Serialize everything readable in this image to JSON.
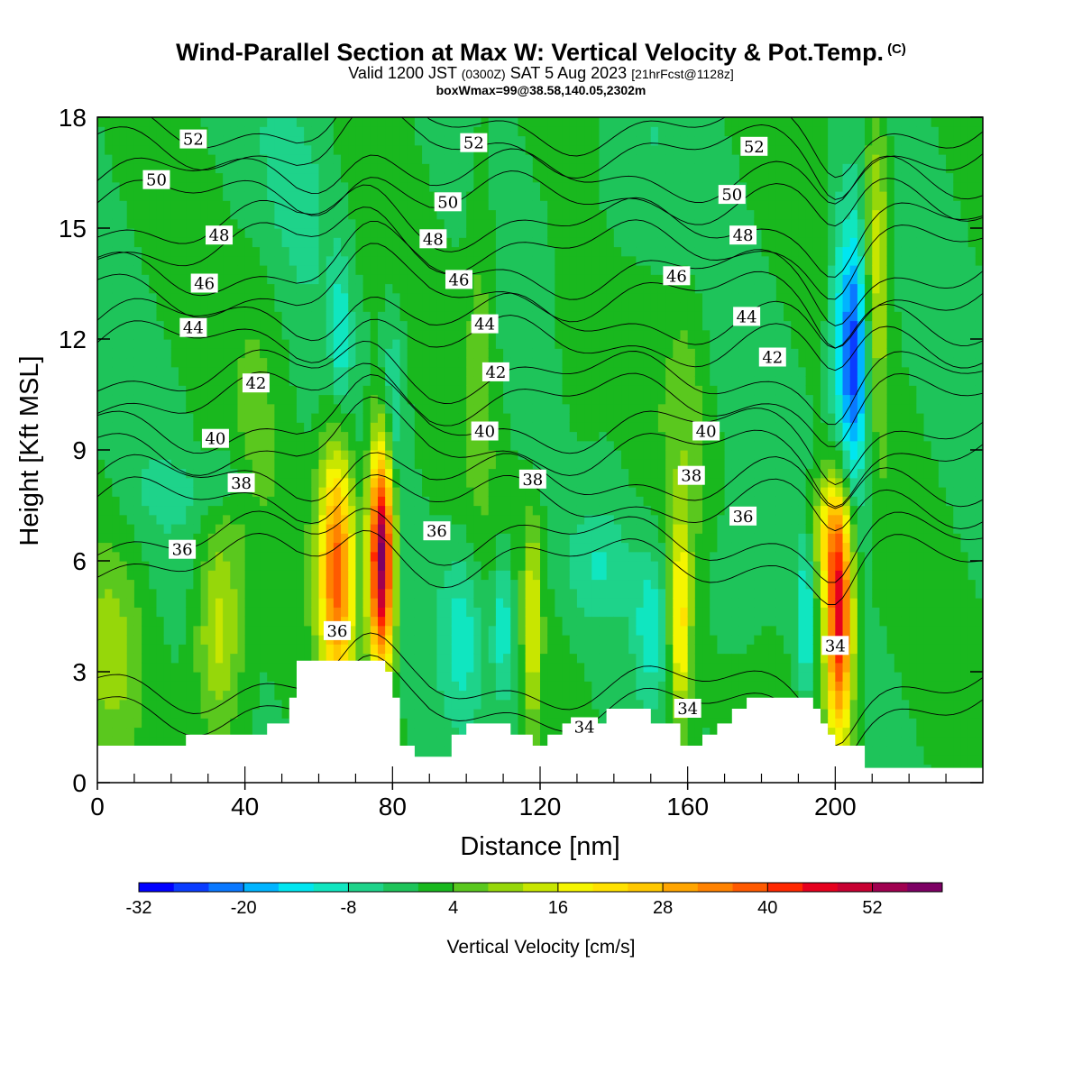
{
  "header": {
    "title": "Wind-Parallel Section at Max W: Vertical Velocity & Pot.Temp.",
    "copyright": "(C)",
    "valid_prefix": "Valid 1200 JST",
    "valid_utc": "(0300Z)",
    "valid_date": "SAT 5 Aug 2023",
    "forecast": "[21hrFcst@1128z]",
    "boxwmax": "boxWmax=99@38.58,140.05,2302m"
  },
  "chart_data": {
    "type": "heatmap",
    "title": "Wind-Parallel Section at Max W: Vertical Velocity & Pot.Temp.",
    "xlabel": "Distance [nm]",
    "ylabel": "Height [Kft MSL]",
    "xlim": [
      0,
      240
    ],
    "ylim": [
      0,
      18
    ],
    "x_ticks": [
      0,
      40,
      80,
      120,
      160,
      200
    ],
    "y_ticks": [
      0,
      3,
      6,
      9,
      12,
      15,
      18
    ],
    "colorbar": {
      "label": "Vertical Velocity [cm/s]",
      "tick_values": [
        -32,
        -20,
        -8,
        4,
        16,
        28,
        40,
        52
      ],
      "tick_labels": [
        "-32",
        "-20",
        "-8",
        "4",
        "16",
        "28",
        "40",
        "52"
      ],
      "min": -32,
      "max": 60,
      "step": 4,
      "colors": [
        "#0000ff",
        "#0a3cff",
        "#0a78ff",
        "#00b4ff",
        "#00e6f0",
        "#10e6c0",
        "#1ed38a",
        "#1ec45a",
        "#19b81e",
        "#5ac81e",
        "#96d70a",
        "#c8e600",
        "#f5f500",
        "#ffe100",
        "#ffc800",
        "#ffa500",
        "#ff8200",
        "#ff5a00",
        "#ff2800",
        "#e6001e",
        "#c80032",
        "#a00050",
        "#7d0064"
      ]
    },
    "series": [
      {
        "name": "Vertical Velocity",
        "units": "cm/s",
        "background": 0,
        "features": [
          {
            "x": 4,
            "z": 3.3,
            "sx": 6,
            "sz": 2.0,
            "w": 9
          },
          {
            "x": 33,
            "z": 4.2,
            "sx": 4.5,
            "sz": 2.0,
            "w": 15
          },
          {
            "x": 20,
            "z": 7.8,
            "sx": 7,
            "sz": 0.6,
            "w": -4
          },
          {
            "x": 34,
            "z": 8.3,
            "sx": 3,
            "sz": 0.6,
            "w": -6
          },
          {
            "x": 65,
            "z": 5.8,
            "sx": 3.4,
            "sz": 2.4,
            "w": 38
          },
          {
            "x": 77,
            "z": 6.2,
            "sx": 2.4,
            "sz": 2.2,
            "w": 60
          },
          {
            "x": 71,
            "z": 5.5,
            "sx": 1.2,
            "sz": 2.5,
            "w": -2
          },
          {
            "x": 66,
            "z": 12.0,
            "sx": 2.0,
            "sz": 1.6,
            "w": -10
          },
          {
            "x": 80,
            "z": 10.2,
            "sx": 2.5,
            "sz": 2.0,
            "w": -10
          },
          {
            "x": 99,
            "z": 4.0,
            "sx": 4.5,
            "sz": 1.8,
            "w": -10
          },
          {
            "x": 110,
            "z": 4.3,
            "sx": 2.0,
            "sz": 1.5,
            "w": -12
          },
          {
            "x": 118,
            "z": 4.3,
            "sx": 1.6,
            "sz": 2.0,
            "w": 16
          },
          {
            "x": 135,
            "z": 5.8,
            "sx": 6,
            "sz": 1.0,
            "w": -6
          },
          {
            "x": 150,
            "z": 4.2,
            "sx": 3,
            "sz": 1.5,
            "w": -10
          },
          {
            "x": 158,
            "z": 4.3,
            "sx": 2.0,
            "sz": 2.0,
            "w": 22
          },
          {
            "x": 172,
            "z": 5.5,
            "sx": 5,
            "sz": 1.3,
            "w": -6
          },
          {
            "x": 192,
            "z": 4.5,
            "sx": 1.1,
            "sz": 1.5,
            "w": -15
          },
          {
            "x": 201,
            "z": 4.4,
            "sx": 2.6,
            "sz": 2.3,
            "w": 48
          },
          {
            "x": 198,
            "z": 6.8,
            "sx": 3.5,
            "sz": 1.2,
            "w": 16
          },
          {
            "x": 205,
            "z": 11.5,
            "sx": 3.0,
            "sz": 2.6,
            "w": -30
          },
          {
            "x": 200,
            "z": 12.0,
            "sx": 2.0,
            "sz": 3.0,
            "w": -6
          },
          {
            "x": 211,
            "z": 14.5,
            "sx": 2.6,
            "sz": 3.0,
            "w": 16
          },
          {
            "x": 104,
            "z": 13.0,
            "sx": 3,
            "sz": 4,
            "w": 6
          },
          {
            "x": 130,
            "z": 12.0,
            "sx": 5,
            "sz": 3,
            "w": 4
          },
          {
            "x": 160,
            "z": 10.5,
            "sx": 4,
            "sz": 2.5,
            "w": 5
          },
          {
            "x": 45,
            "z": 12.0,
            "sx": 5,
            "sz": 3,
            "w": 3
          },
          {
            "x": 140,
            "z": 16.0,
            "sx": 10,
            "sz": 2,
            "w": -4
          },
          {
            "x": 55,
            "z": 16.5,
            "sx": 8,
            "sz": 2,
            "w": -4
          }
        ]
      },
      {
        "name": "Potential Temperature",
        "contour_values": [
          34,
          36,
          38,
          40,
          42,
          44,
          46,
          48,
          50,
          52
        ],
        "labels": [
          {
            "text": "52",
            "x": 26,
            "z": 17.4
          },
          {
            "text": "52",
            "x": 102,
            "z": 17.3
          },
          {
            "text": "52",
            "x": 178,
            "z": 17.2
          },
          {
            "text": "50",
            "x": 16,
            "z": 16.3
          },
          {
            "text": "50",
            "x": 95,
            "z": 15.7
          },
          {
            "text": "50",
            "x": 172,
            "z": 15.9
          },
          {
            "text": "48",
            "x": 33,
            "z": 14.8
          },
          {
            "text": "48",
            "x": 91,
            "z": 14.7
          },
          {
            "text": "48",
            "x": 175,
            "z": 14.8
          },
          {
            "text": "46",
            "x": 29,
            "z": 13.5
          },
          {
            "text": "46",
            "x": 98,
            "z": 13.6
          },
          {
            "text": "46",
            "x": 157,
            "z": 13.7
          },
          {
            "text": "44",
            "x": 26,
            "z": 12.3
          },
          {
            "text": "44",
            "x": 105,
            "z": 12.4
          },
          {
            "text": "44",
            "x": 176,
            "z": 12.6
          },
          {
            "text": "42",
            "x": 43,
            "z": 10.8
          },
          {
            "text": "42",
            "x": 108,
            "z": 11.1
          },
          {
            "text": "42",
            "x": 183,
            "z": 11.5
          },
          {
            "text": "40",
            "x": 32,
            "z": 9.3
          },
          {
            "text": "40",
            "x": 105,
            "z": 9.5
          },
          {
            "text": "40",
            "x": 165,
            "z": 9.5
          },
          {
            "text": "38",
            "x": 39,
            "z": 8.1
          },
          {
            "text": "38",
            "x": 118,
            "z": 8.2
          },
          {
            "text": "38",
            "x": 161,
            "z": 8.3
          },
          {
            "text": "36",
            "x": 23,
            "z": 6.3
          },
          {
            "text": "36",
            "x": 92,
            "z": 6.8
          },
          {
            "text": "36",
            "x": 175,
            "z": 7.2
          },
          {
            "text": "36",
            "x": 65,
            "z": 4.1
          },
          {
            "text": "34",
            "x": 132,
            "z": 1.5
          },
          {
            "text": "34",
            "x": 160,
            "z": 2.0
          },
          {
            "text": "34",
            "x": 200,
            "z": 3.7
          }
        ]
      }
    ],
    "terrain": [
      [
        0,
        1.0
      ],
      [
        10,
        1.0
      ],
      [
        12,
        1.0
      ],
      [
        24,
        1.0
      ],
      [
        24,
        1.3
      ],
      [
        46,
        1.3
      ],
      [
        46,
        1.6
      ],
      [
        52,
        1.6
      ],
      [
        52,
        2.3
      ],
      [
        54,
        2.3
      ],
      [
        54,
        3.3
      ],
      [
        78,
        3.3
      ],
      [
        78,
        3.0
      ],
      [
        80,
        3.0
      ],
      [
        80,
        2.3
      ],
      [
        82,
        2.3
      ],
      [
        82,
        1.0
      ],
      [
        86,
        1.0
      ],
      [
        86,
        0.7
      ],
      [
        96,
        0.7
      ],
      [
        96,
        1.3
      ],
      [
        100,
        1.3
      ],
      [
        100,
        1.6
      ],
      [
        106,
        1.6
      ],
      [
        106,
        1.6
      ],
      [
        112,
        1.6
      ],
      [
        112,
        1.3
      ],
      [
        118,
        1.3
      ],
      [
        118,
        1.0
      ],
      [
        122,
        1.0
      ],
      [
        122,
        1.3
      ],
      [
        126,
        1.3
      ],
      [
        126,
        1.6
      ],
      [
        138,
        1.6
      ],
      [
        138,
        2.0
      ],
      [
        150,
        2.0
      ],
      [
        150,
        1.6
      ],
      [
        158,
        1.6
      ],
      [
        158,
        1.0
      ],
      [
        164,
        1.0
      ],
      [
        164,
        1.3
      ],
      [
        168,
        1.3
      ],
      [
        168,
        1.6
      ],
      [
        172,
        1.6
      ],
      [
        172,
        2.0
      ],
      [
        176,
        2.0
      ],
      [
        176,
        2.3
      ],
      [
        194,
        2.3
      ],
      [
        194,
        2.0
      ],
      [
        196,
        2.0
      ],
      [
        196,
        1.6
      ],
      [
        198,
        1.6
      ],
      [
        198,
        1.3
      ],
      [
        200,
        1.3
      ],
      [
        200,
        1.0
      ],
      [
        208,
        1.0
      ],
      [
        208,
        0.4
      ],
      [
        240,
        0.4
      ]
    ]
  }
}
